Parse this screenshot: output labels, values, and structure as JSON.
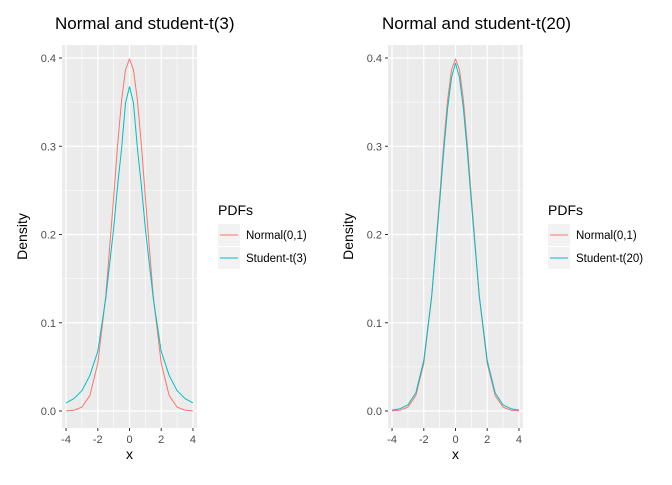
{
  "chart_data": [
    {
      "type": "line",
      "title": "Normal and student-t(3)",
      "xlabel": "x",
      "ylabel": "Density",
      "xlim": [
        -4,
        4
      ],
      "ylim": [
        0,
        0.4
      ],
      "x_ticks": [
        -4,
        -2,
        0,
        2,
        4
      ],
      "x_tick_labels": [
        "-4",
        "-2",
        "0",
        "2",
        "4"
      ],
      "y_ticks": [
        0,
        0.1,
        0.2,
        0.3,
        0.4
      ],
      "y_tick_labels": [
        "0.0",
        "0.1",
        "0.2",
        "0.3",
        "0.4"
      ],
      "grid": true,
      "legend": {
        "title": "PDFs",
        "position": "right"
      },
      "x": [
        -4,
        -3.5,
        -3,
        -2.5,
        -2,
        -1.5,
        -1,
        -0.75,
        -0.5,
        -0.25,
        0,
        0.25,
        0.5,
        0.75,
        1,
        1.5,
        2,
        2.5,
        3,
        3.5,
        4
      ],
      "series": [
        {
          "name": "Normal(0,1)",
          "color": "#F8766D",
          "values": [
            0.0001,
            0.0009,
            0.0044,
            0.0175,
            0.054,
            0.1295,
            0.242,
            0.3011,
            0.3521,
            0.3867,
            0.3989,
            0.3867,
            0.3521,
            0.3011,
            0.242,
            0.1295,
            0.054,
            0.0175,
            0.0044,
            0.0009,
            0.0001
          ]
        },
        {
          "name": "Student-t(3)",
          "color": "#00BFC4",
          "values": [
            0.0092,
            0.0141,
            0.023,
            0.0403,
            0.0675,
            0.1274,
            0.2067,
            0.2552,
            0.2973,
            0.349,
            0.3676,
            0.349,
            0.2973,
            0.2552,
            0.2067,
            0.1274,
            0.0675,
            0.0403,
            0.023,
            0.0141,
            0.0092
          ]
        }
      ]
    },
    {
      "type": "line",
      "title": "Normal and student-t(20)",
      "xlabel": "x",
      "ylabel": "Density",
      "xlim": [
        -4,
        4
      ],
      "ylim": [
        0,
        0.4
      ],
      "x_ticks": [
        -4,
        -2,
        0,
        2,
        4
      ],
      "x_tick_labels": [
        "-4",
        "-2",
        "0",
        "2",
        "4"
      ],
      "y_ticks": [
        0,
        0.1,
        0.2,
        0.3,
        0.4
      ],
      "y_tick_labels": [
        "0.0",
        "0.1",
        "0.2",
        "0.3",
        "0.4"
      ],
      "grid": true,
      "legend": {
        "title": "PDFs",
        "position": "right"
      },
      "x": [
        -4,
        -3.5,
        -3,
        -2.5,
        -2,
        -1.5,
        -1,
        -0.75,
        -0.5,
        -0.25,
        0,
        0.25,
        0.5,
        0.75,
        1,
        1.5,
        2,
        2.5,
        3,
        3.5,
        4
      ],
      "series": [
        {
          "name": "Normal(0,1)",
          "color": "#F8766D",
          "values": [
            0.0001,
            0.0009,
            0.0044,
            0.0175,
            0.054,
            0.1295,
            0.242,
            0.3011,
            0.3521,
            0.3867,
            0.3989,
            0.3867,
            0.3521,
            0.3011,
            0.242,
            0.1295,
            0.054,
            0.0175,
            0.0044,
            0.0009,
            0.0001
          ]
        },
        {
          "name": "Student-t(20)",
          "color": "#00BFC4",
          "values": [
            0.001,
            0.0026,
            0.0069,
            0.0205,
            0.0573,
            0.1305,
            0.236,
            0.2925,
            0.3425,
            0.378,
            0.394,
            0.378,
            0.3425,
            0.2925,
            0.236,
            0.1305,
            0.0573,
            0.0205,
            0.0069,
            0.0026,
            0.001
          ]
        }
      ]
    }
  ]
}
